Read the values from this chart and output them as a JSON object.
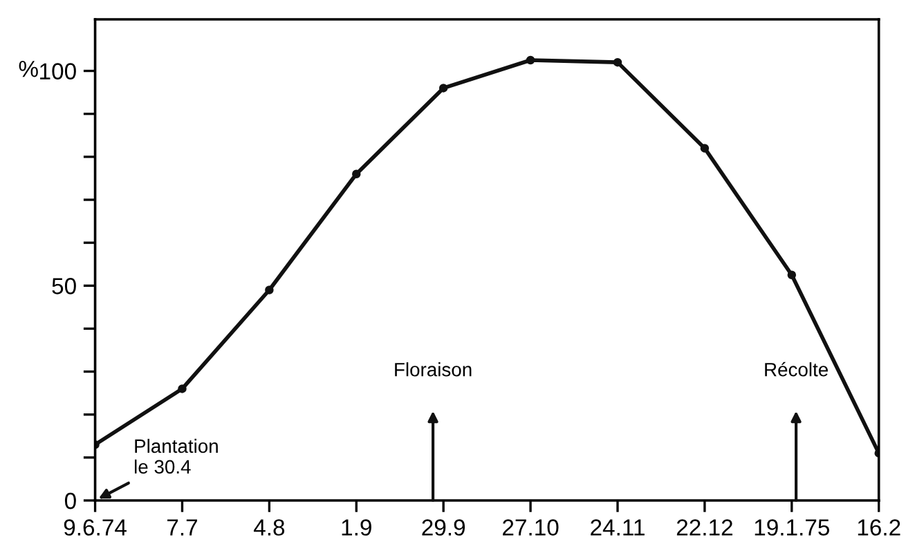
{
  "chart_data": {
    "type": "line",
    "ylabel": "%",
    "categories": [
      "9.6.74",
      "7.7",
      "4.8",
      "1.9",
      "29.9",
      "27.10",
      "24.11",
      "22.12",
      "19.1.75",
      "16.2"
    ],
    "series": [
      {
        "color": "#111111",
        "values": [
          13,
          26,
          49,
          76,
          96,
          102.5,
          102,
          82,
          52.5,
          11
        ]
      }
    ],
    "ylim": [
      0,
      112
    ],
    "yticks": [
      0,
      {
        "value": 10,
        "label": null
      },
      {
        "value": 20,
        "label": null
      },
      {
        "value": 30,
        "label": null
      },
      {
        "value": 40,
        "label": null
      },
      50,
      {
        "value": 60,
        "label": null
      },
      {
        "value": 70,
        "label": null
      },
      {
        "value": 80,
        "label": null
      },
      {
        "value": 90,
        "label": null
      },
      100
    ],
    "marker": "circle",
    "line_style": "solid",
    "grid": false,
    "legend": false,
    "annotations": [
      "Plantation\nle 30.4",
      "Floraison",
      "Récolte"
    ]
  }
}
